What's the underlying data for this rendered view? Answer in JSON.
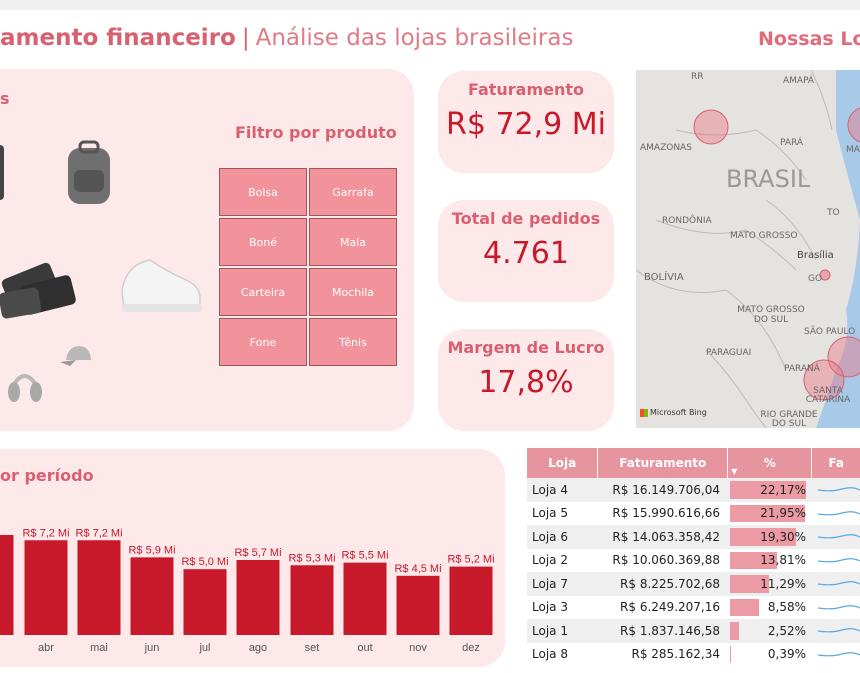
{
  "header": {
    "title_bold": "amento financeiro",
    "separator": "|",
    "title_sub": "Análise das lojas brasileiras",
    "stores_title": "Nossas Lo"
  },
  "products": {
    "heading": "s",
    "filter_title": "Filtro por produto",
    "filters": [
      "Bolsa",
      "Garrafa",
      "Boné",
      "Mala",
      "Carteira",
      "Mochila",
      "Fone",
      "Tênis"
    ]
  },
  "kpis": {
    "revenue_label": "Faturamento",
    "revenue_value": "R$ 72,9 Mi",
    "orders_label": "Total de pedidos",
    "orders_value": "4.761",
    "margin_label": "Margem de Lucro",
    "margin_value": "17,8%"
  },
  "map": {
    "labels": [
      "RR",
      "AMAPÁ",
      "AMAZONAS",
      "PARÁ",
      "MAF",
      "BRASIL",
      "TO",
      "RONDÔNIA",
      "MATO GROSSO",
      "Brasília",
      "GO",
      "BOLÍVIA",
      "MATO GROSSO DO SUL",
      "SÃO PAULO",
      "PARAGUAI",
      "PARANÁ",
      "SANTA CATARINA",
      "RIO GRANDE DO SUL"
    ],
    "attribution": "Microsoft Bing"
  },
  "chart_title": "or período",
  "chart_data": {
    "type": "bar",
    "categories": [
      "r",
      "abr",
      "mai",
      "jun",
      "jul",
      "ago",
      "set",
      "out",
      "nov",
      "dez"
    ],
    "values": [
      7.6,
      7.2,
      7.2,
      5.9,
      5.0,
      5.7,
      5.3,
      5.5,
      4.5,
      5.2
    ],
    "labels": [
      "Mi",
      "R$ 7,2 Mi",
      "R$ 7,2 Mi",
      "R$ 5,9 Mi",
      "R$ 5,0 Mi",
      "R$ 5,7 Mi",
      "R$ 5,3 Mi",
      "R$ 5,5 Mi",
      "R$ 4,5 Mi",
      "R$ 5,2 Mi"
    ],
    "color": "#c8192a"
  },
  "table": {
    "headers": [
      "Loja",
      "Faturamento",
      "%",
      "Fa"
    ],
    "rows": [
      {
        "store": "Loja 4",
        "revenue": "R$ 16.149.706,04",
        "pct": "22,17%",
        "share": 22.17
      },
      {
        "store": "Loja 5",
        "revenue": "R$ 15.990.616,66",
        "pct": "21,95%",
        "share": 21.95
      },
      {
        "store": "Loja 6",
        "revenue": "R$ 14.063.358,42",
        "pct": "19,30%",
        "share": 19.3
      },
      {
        "store": "Loja 2",
        "revenue": "R$ 10.060.369,88",
        "pct": "13,81%",
        "share": 13.81
      },
      {
        "store": "Loja 7",
        "revenue": "R$ 8.225.702,68",
        "pct": "11,29%",
        "share": 11.29
      },
      {
        "store": "Loja 3",
        "revenue": "R$ 6.249.207,16",
        "pct": "8,58%",
        "share": 8.58
      },
      {
        "store": "Loja 1",
        "revenue": "R$ 1.837.146,58",
        "pct": "2,52%",
        "share": 2.52
      },
      {
        "store": "Loja 8",
        "revenue": "R$ 285.162,34",
        "pct": "0,39%",
        "share": 0.39
      }
    ]
  }
}
